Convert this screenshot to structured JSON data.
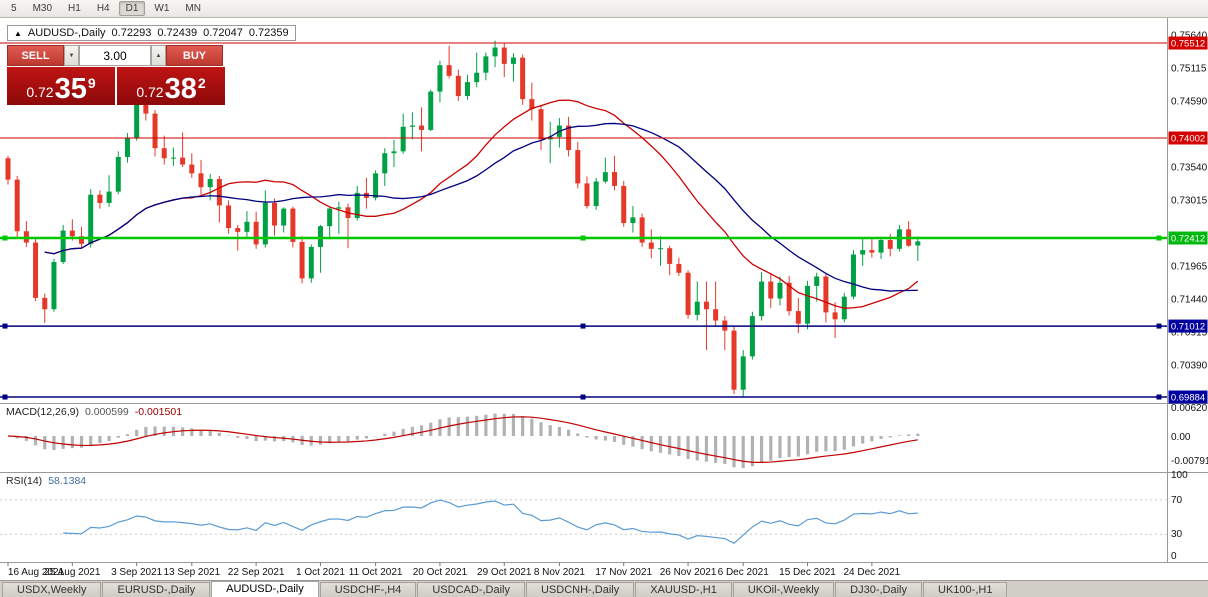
{
  "toolbar": {
    "timeframes": [
      "5",
      "M30",
      "H1",
      "H4",
      "D1",
      "W1",
      "MN"
    ],
    "active": "D1"
  },
  "chart_header": {
    "marker": "▲",
    "symbol": "AUDUSD-,Daily",
    "open": "0.72293",
    "high": "0.72439",
    "low": "0.72047",
    "close": "0.72359"
  },
  "trade_panel": {
    "sell_label": "SELL",
    "buy_label": "BUY",
    "volume": "3.00",
    "dec_icon": "▼",
    "inc_icon": "▲",
    "sell_price": {
      "prefix": "0.72",
      "big": "35",
      "sup": "9"
    },
    "buy_price": {
      "prefix": "0.72",
      "big": "38",
      "sup": "2"
    }
  },
  "price_axis": {
    "labels": [
      {
        "text": "0.75640",
        "price": 0.7564
      },
      {
        "text": "0.75115",
        "price": 0.75115
      },
      {
        "text": "0.74590",
        "price": 0.7459
      },
      {
        "text": "0.73540",
        "price": 0.7354
      },
      {
        "text": "0.73015",
        "price": 0.73015
      },
      {
        "text": "0.71965",
        "price": 0.71965
      },
      {
        "text": "0.71440",
        "price": 0.7144
      },
      {
        "text": "0.70915",
        "price": 0.70915
      },
      {
        "text": "0.70390",
        "price": 0.7039
      }
    ],
    "badges": [
      {
        "text": "0.75512",
        "price": 0.75512,
        "bg": "#d40000"
      },
      {
        "text": "0.74002",
        "price": 0.74002,
        "bg": "#d40000"
      },
      {
        "text": "0.72412",
        "price": 0.72412,
        "bg": "#00b80e"
      },
      {
        "text": "0.71012",
        "price": 0.71012,
        "bg": "#0000a0"
      },
      {
        "text": "0.69884",
        "price": 0.69884,
        "bg": "#0000a0"
      }
    ]
  },
  "hlines": [
    {
      "price": 0.75512,
      "color": "#cc0000",
      "width": 1,
      "handles": false
    },
    {
      "price": 0.74002,
      "color": "#cc0000",
      "width": 1,
      "handles": false
    },
    {
      "price": 0.72412,
      "color": "#00c800",
      "width": 2.5,
      "handles": true
    },
    {
      "price": 0.71012,
      "color": "#000080",
      "width": 1.5,
      "handles": true
    },
    {
      "price": 0.69884,
      "color": "#000080",
      "width": 1.5,
      "handles": true
    }
  ],
  "macd": {
    "title": "MACD(12,26,9)",
    "value_main": "0.000599",
    "value_signal": "-0.001501",
    "axis": [
      "0.00620",
      "0.00",
      "-0.00791"
    ]
  },
  "rsi": {
    "title": "RSI(14)",
    "value": "58.1384",
    "axis": [
      "100",
      "70",
      "30",
      "0"
    ],
    "levels": [
      70,
      30
    ]
  },
  "tabs": [
    "USDX,Weekly",
    "EURUSD-,Daily",
    "AUDUSD-,Daily",
    "USDCHF-,H4",
    "USDCAD-,Daily",
    "USDCNH-,Daily",
    "XAUUSD-,H1",
    "UKOil-,Weekly",
    "DJ30-,Daily",
    "UK100-,H1"
  ],
  "active_tab": "AUDUSD-,Daily",
  "colors": {
    "up": "#00a145",
    "down": "#e53829",
    "ma_fast": "#cc0000",
    "ma_slow": "#000080",
    "macd_hist": "#b2b2b2",
    "macd_signal": "#c00000",
    "rsi": "#5b9bd5"
  },
  "chart_data": {
    "type": "candlestick",
    "symbol": "AUDUSD",
    "timeframe": "Daily",
    "x_labels": [
      {
        "text": "16 Aug 2021",
        "i": 0
      },
      {
        "text": "25 Aug 2021",
        "i": 7
      },
      {
        "text": "3 Sep 2021",
        "i": 14
      },
      {
        "text": "13 Sep 2021",
        "i": 20
      },
      {
        "text": "22 Sep 2021",
        "i": 27
      },
      {
        "text": "1 Oct 2021",
        "i": 34
      },
      {
        "text": "11 Oct 2021",
        "i": 40
      },
      {
        "text": "20 Oct 2021",
        "i": 47
      },
      {
        "text": "29 Oct 2021",
        "i": 54
      },
      {
        "text": "8 Nov 2021",
        "i": 60
      },
      {
        "text": "17 Nov 2021",
        "i": 67
      },
      {
        "text": "26 Nov 2021",
        "i": 74
      },
      {
        "text": "6 Dec 2021",
        "i": 80
      },
      {
        "text": "15 Dec 2021",
        "i": 87
      },
      {
        "text": "24 Dec 2021",
        "i": 94
      }
    ],
    "y_range": [
      0.69837,
      0.75878
    ],
    "candles": [
      [
        0.7368,
        0.7372,
        0.7326,
        0.7334
      ],
      [
        0.7334,
        0.734,
        0.724,
        0.7252
      ],
      [
        0.7252,
        0.7268,
        0.7227,
        0.7234
      ],
      [
        0.7234,
        0.724,
        0.7141,
        0.7146
      ],
      [
        0.7146,
        0.7153,
        0.7106,
        0.7128
      ],
      [
        0.7128,
        0.7208,
        0.7124,
        0.7203
      ],
      [
        0.7203,
        0.7262,
        0.72,
        0.7253
      ],
      [
        0.7253,
        0.7271,
        0.7237,
        0.7244
      ],
      [
        0.7244,
        0.7259,
        0.7224,
        0.7232
      ],
      [
        0.7232,
        0.7319,
        0.7226,
        0.731
      ],
      [
        0.731,
        0.7317,
        0.7288,
        0.7297
      ],
      [
        0.7297,
        0.7341,
        0.7291,
        0.7315
      ],
      [
        0.7315,
        0.7379,
        0.7311,
        0.737
      ],
      [
        0.737,
        0.7408,
        0.7361,
        0.74
      ],
      [
        0.74,
        0.7477,
        0.7396,
        0.7455
      ],
      [
        0.7455,
        0.7462,
        0.7428,
        0.7439
      ],
      [
        0.7439,
        0.7445,
        0.7371,
        0.7384
      ],
      [
        0.7384,
        0.7404,
        0.7358,
        0.7368
      ],
      [
        0.7368,
        0.7385,
        0.7356,
        0.7369
      ],
      [
        0.7369,
        0.7409,
        0.7354,
        0.7358
      ],
      [
        0.7358,
        0.7376,
        0.7337,
        0.7344
      ],
      [
        0.7344,
        0.7365,
        0.731,
        0.7322
      ],
      [
        0.7322,
        0.7343,
        0.7301,
        0.7335
      ],
      [
        0.7335,
        0.734,
        0.7266,
        0.7293
      ],
      [
        0.7293,
        0.7301,
        0.7248,
        0.7257
      ],
      [
        0.7257,
        0.7262,
        0.7221,
        0.7251
      ],
      [
        0.7251,
        0.7284,
        0.724,
        0.7267
      ],
      [
        0.7267,
        0.7283,
        0.7224,
        0.7231
      ],
      [
        0.7231,
        0.7317,
        0.7226,
        0.7297
      ],
      [
        0.7297,
        0.7304,
        0.7245,
        0.7261
      ],
      [
        0.7261,
        0.729,
        0.725,
        0.7288
      ],
      [
        0.7288,
        0.7291,
        0.7226,
        0.7235
      ],
      [
        0.7235,
        0.7244,
        0.7169,
        0.7177
      ],
      [
        0.7177,
        0.7231,
        0.717,
        0.7227
      ],
      [
        0.7227,
        0.7262,
        0.7186,
        0.726
      ],
      [
        0.726,
        0.7291,
        0.7239,
        0.7288
      ],
      [
        0.7288,
        0.7299,
        0.7248,
        0.729
      ],
      [
        0.729,
        0.7296,
        0.7225,
        0.7273
      ],
      [
        0.7273,
        0.7324,
        0.7269,
        0.7313
      ],
      [
        0.7313,
        0.7337,
        0.7288,
        0.7305
      ],
      [
        0.7305,
        0.7349,
        0.7301,
        0.7344
      ],
      [
        0.7344,
        0.7384,
        0.7324,
        0.7376
      ],
      [
        0.7376,
        0.7397,
        0.7354,
        0.7379
      ],
      [
        0.7379,
        0.7439,
        0.7375,
        0.7418
      ],
      [
        0.7418,
        0.7441,
        0.7398,
        0.742
      ],
      [
        0.742,
        0.7449,
        0.7379,
        0.7413
      ],
      [
        0.7413,
        0.7477,
        0.7411,
        0.7474
      ],
      [
        0.7474,
        0.7523,
        0.7457,
        0.7516
      ],
      [
        0.7516,
        0.7547,
        0.7495,
        0.7499
      ],
      [
        0.7499,
        0.7509,
        0.7459,
        0.7467
      ],
      [
        0.7467,
        0.7501,
        0.7461,
        0.7489
      ],
      [
        0.7489,
        0.7536,
        0.7481,
        0.7504
      ],
      [
        0.7504,
        0.7536,
        0.7492,
        0.753
      ],
      [
        0.753,
        0.7555,
        0.7513,
        0.7544
      ],
      [
        0.7544,
        0.7552,
        0.7497,
        0.7518
      ],
      [
        0.7518,
        0.7535,
        0.749,
        0.7528
      ],
      [
        0.7528,
        0.7533,
        0.7453,
        0.7462
      ],
      [
        0.7462,
        0.7488,
        0.7428,
        0.7446
      ],
      [
        0.7446,
        0.7453,
        0.7381,
        0.7398
      ],
      [
        0.7398,
        0.7426,
        0.736,
        0.7402
      ],
      [
        0.7402,
        0.7432,
        0.7385,
        0.742
      ],
      [
        0.742,
        0.7434,
        0.7371,
        0.7381
      ],
      [
        0.7381,
        0.7394,
        0.732,
        0.7328
      ],
      [
        0.7328,
        0.7339,
        0.7288,
        0.7292
      ],
      [
        0.7292,
        0.7337,
        0.7286,
        0.7331
      ],
      [
        0.7331,
        0.7369,
        0.7328,
        0.7346
      ],
      [
        0.7346,
        0.7372,
        0.7317,
        0.7324
      ],
      [
        0.7324,
        0.7332,
        0.7259,
        0.7265
      ],
      [
        0.7265,
        0.7292,
        0.725,
        0.7274
      ],
      [
        0.7274,
        0.728,
        0.7227,
        0.7234
      ],
      [
        0.7234,
        0.7255,
        0.7209,
        0.7224
      ],
      [
        0.7224,
        0.7244,
        0.7197,
        0.7225
      ],
      [
        0.7225,
        0.7229,
        0.7182,
        0.72
      ],
      [
        0.72,
        0.721,
        0.7181,
        0.7186
      ],
      [
        0.7186,
        0.719,
        0.7113,
        0.7119
      ],
      [
        0.7119,
        0.7172,
        0.711,
        0.714
      ],
      [
        0.714,
        0.7172,
        0.7063,
        0.7128
      ],
      [
        0.7128,
        0.7172,
        0.71,
        0.711
      ],
      [
        0.711,
        0.7117,
        0.7063,
        0.7094
      ],
      [
        0.7094,
        0.7101,
        0.6993,
        0.7
      ],
      [
        0.7,
        0.7063,
        0.6988,
        0.7053
      ],
      [
        0.7053,
        0.7124,
        0.7048,
        0.7117
      ],
      [
        0.7117,
        0.7187,
        0.711,
        0.7172
      ],
      [
        0.7172,
        0.7185,
        0.713,
        0.7145
      ],
      [
        0.7145,
        0.718,
        0.7134,
        0.717
      ],
      [
        0.717,
        0.7181,
        0.7118,
        0.7125
      ],
      [
        0.7125,
        0.7146,
        0.709,
        0.7105
      ],
      [
        0.7105,
        0.7173,
        0.7096,
        0.7165
      ],
      [
        0.7165,
        0.7186,
        0.714,
        0.718
      ],
      [
        0.718,
        0.7184,
        0.7107,
        0.7123
      ],
      [
        0.7123,
        0.7139,
        0.7082,
        0.7112
      ],
      [
        0.7112,
        0.7154,
        0.7107,
        0.7148
      ],
      [
        0.7148,
        0.7222,
        0.7144,
        0.7215
      ],
      [
        0.7215,
        0.7242,
        0.7197,
        0.7222
      ],
      [
        0.7222,
        0.7241,
        0.721,
        0.7218
      ],
      [
        0.7218,
        0.7243,
        0.7208,
        0.7238
      ],
      [
        0.7238,
        0.7248,
        0.7212,
        0.7224
      ],
      [
        0.7224,
        0.7262,
        0.722,
        0.7255
      ],
      [
        0.7255,
        0.7268,
        0.7227,
        0.7229
      ],
      [
        0.72293,
        0.72439,
        0.72047,
        0.72359
      ]
    ]
  }
}
